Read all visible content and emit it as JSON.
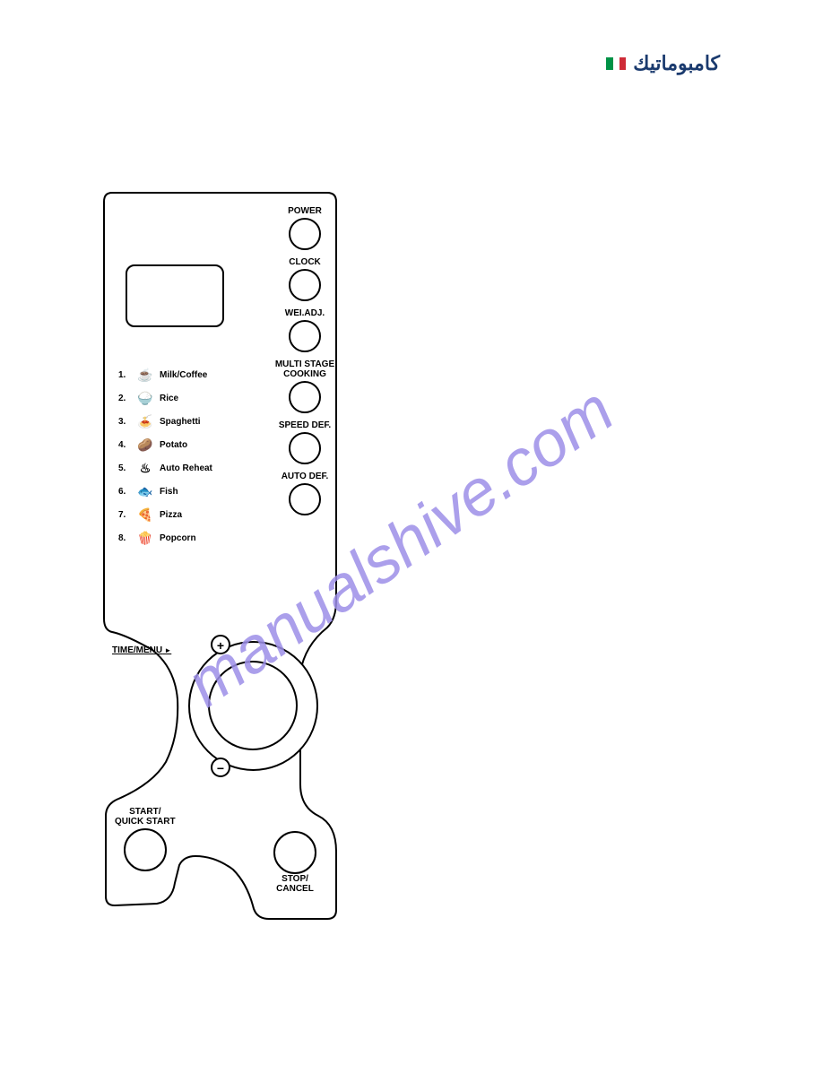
{
  "brand": {
    "text": "كامبوماتيك",
    "flag_colors": [
      "#009246",
      "#ffffff",
      "#ce2b37"
    ]
  },
  "watermark": {
    "text": "manualshive.com",
    "color": "#9d8fe8",
    "fontsize": 72,
    "angle": -35
  },
  "panel": {
    "stroke": "#000000",
    "background": "#ffffff",
    "right_buttons": [
      {
        "label": "POWER"
      },
      {
        "label": "CLOCK"
      },
      {
        "label": "WEI.ADJ."
      },
      {
        "label": "MULTI STAGE\nCOOKING"
      },
      {
        "label": "SPEED DEF."
      },
      {
        "label": "AUTO DEF."
      }
    ],
    "menu": [
      {
        "num": "1.",
        "icon": "☕",
        "label": "Milk/Coffee"
      },
      {
        "num": "2.",
        "icon": "🍚",
        "label": "Rice"
      },
      {
        "num": "3.",
        "icon": "🍝",
        "label": "Spaghetti"
      },
      {
        "num": "4.",
        "icon": "🥔",
        "label": "Potato"
      },
      {
        "num": "5.",
        "icon": "♨",
        "label": "Auto Reheat"
      },
      {
        "num": "6.",
        "icon": "🐟",
        "label": "Fish"
      },
      {
        "num": "7.",
        "icon": "🍕",
        "label": "Pizza"
      },
      {
        "num": "8.",
        "icon": "🍿",
        "label": "Popcorn"
      }
    ],
    "time_menu_label": "TIME/MENU",
    "dial_plus": "+",
    "dial_minus": "−",
    "start_label": "START/\nQUICK START",
    "stop_label": "STOP/\nCANCEL"
  }
}
